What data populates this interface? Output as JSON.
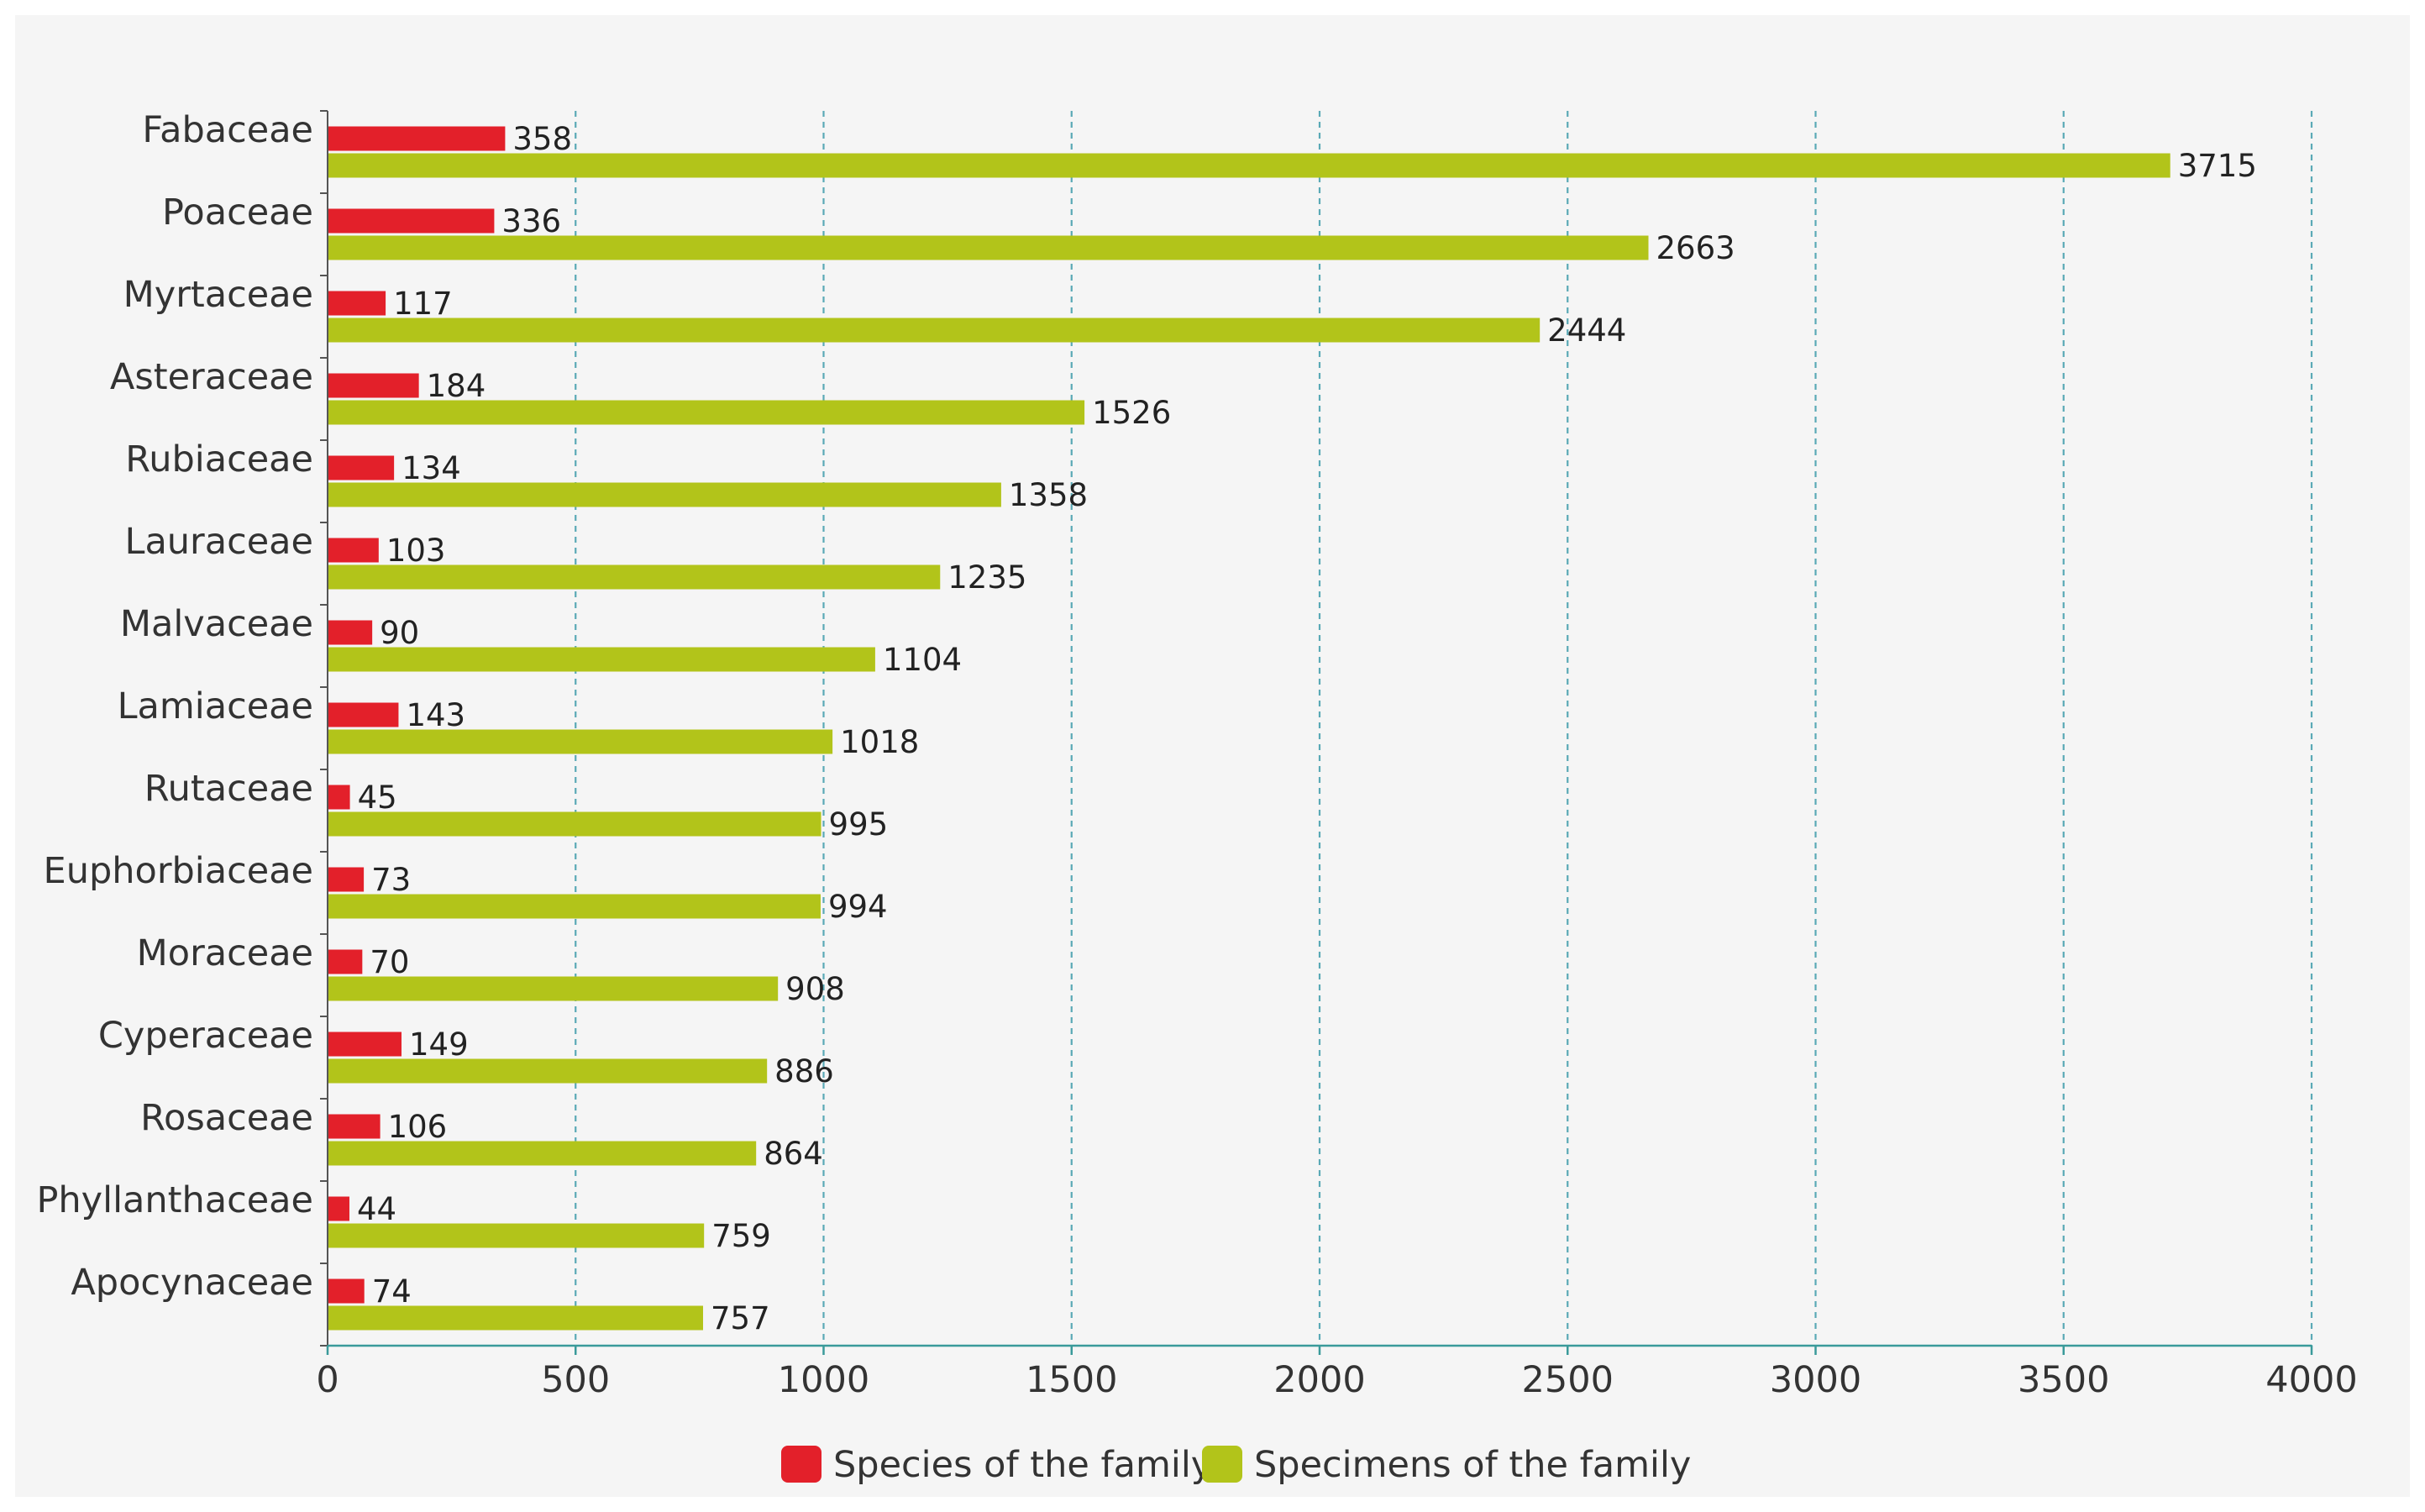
{
  "chart_data": {
    "type": "bar",
    "orientation": "horizontal",
    "title": "",
    "xlabel": "",
    "ylabel": "",
    "xlim": [
      0,
      4000
    ],
    "x_ticks": [
      0,
      500,
      1000,
      1500,
      2000,
      2500,
      3000,
      3500,
      4000
    ],
    "grid": "vertical dashed",
    "legend_position": "bottom-center",
    "categories": [
      "Fabaceae",
      "Poaceae",
      "Myrtaceae",
      "Asteraceae",
      "Rubiaceae",
      "Lauraceae",
      "Malvaceae",
      "Lamiaceae",
      "Rutaceae",
      "Euphorbiaceae",
      "Moraceae",
      "Cyperaceae",
      "Rosaceae",
      "Phyllanthaceae",
      "Apocynaceae"
    ],
    "series": [
      {
        "name": "Species of the family",
        "color": "#e3202a",
        "values": [
          358,
          336,
          117,
          184,
          134,
          103,
          90,
          143,
          45,
          73,
          70,
          149,
          106,
          44,
          74
        ]
      },
      {
        "name": "Specimens of the family",
        "color": "#b2c41a",
        "values": [
          3715,
          2663,
          2444,
          1526,
          1358,
          1235,
          1104,
          1018,
          995,
          994,
          908,
          886,
          864,
          759,
          757
        ]
      }
    ]
  }
}
